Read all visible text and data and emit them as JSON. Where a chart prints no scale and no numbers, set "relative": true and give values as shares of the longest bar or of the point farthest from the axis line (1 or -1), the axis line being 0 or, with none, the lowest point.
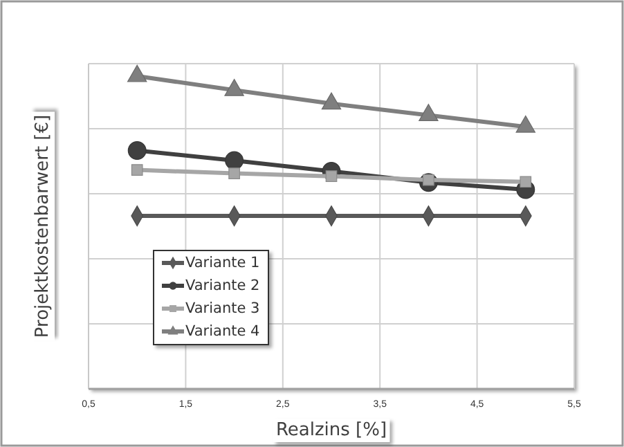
{
  "chart_data": {
    "type": "line",
    "relative": true,
    "xlabel": "Realzins [%]",
    "ylabel": "Projektkostenbarwert [€]",
    "x": [
      1,
      2,
      3,
      4,
      5
    ],
    "xlim": [
      0.5,
      5.5
    ],
    "xticks": [
      {
        "value": 0.5,
        "label": "0,5"
      },
      {
        "value": 1.5,
        "label": "1,5"
      },
      {
        "value": 2.5,
        "label": "2,5"
      },
      {
        "value": 3.5,
        "label": "3,5"
      },
      {
        "value": 4.5,
        "label": "4,5"
      },
      {
        "value": 5.5,
        "label": "5,5"
      }
    ],
    "grid": true,
    "legend": "left",
    "line_style": "solid",
    "series": [
      {
        "name": "Variante 1",
        "color": "#595959",
        "marker": "diamond",
        "values": [
          0.553,
          0.553,
          0.553,
          0.553,
          0.553
        ]
      },
      {
        "name": "Variante 2",
        "color": "#404040",
        "marker": "circle",
        "values": [
          0.762,
          0.73,
          0.696,
          0.66,
          0.637
        ]
      },
      {
        "name": "Variante 3",
        "color": "#a6a6a6",
        "marker": "square",
        "values": [
          0.7,
          0.689,
          0.68,
          0.668,
          0.662
        ]
      },
      {
        "name": "Variante 4",
        "color": "#7f7f7f",
        "marker": "triangle",
        "values": [
          1,
          0.955,
          0.912,
          0.875,
          0.838
        ]
      }
    ]
  }
}
